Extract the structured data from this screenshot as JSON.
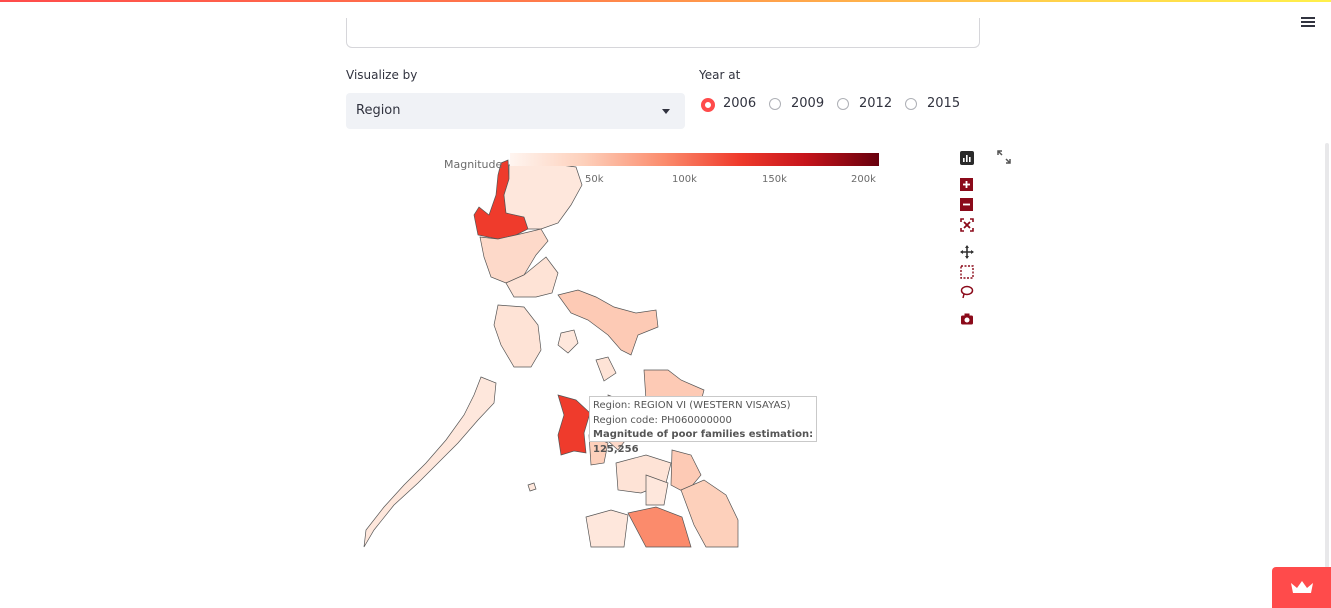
{
  "header": {
    "menu_icon": "hamburger-icon"
  },
  "controls": {
    "visualize_by": {
      "label": "Visualize by",
      "value": "Region",
      "caret_icon": "caret-down-icon"
    },
    "year_at": {
      "label": "Year at",
      "options": [
        "2006",
        "2009",
        "2012",
        "2015"
      ],
      "selected": "2006"
    }
  },
  "map": {
    "colorbar": {
      "title": "Magnitude",
      "ticks": [
        "50k",
        "100k",
        "150k",
        "200k"
      ],
      "colors": [
        "#fff5f0",
        "#fdd0bb",
        "#fb8b6c",
        "#ef3b2c",
        "#c6141b",
        "#67000d"
      ]
    },
    "tooltip": {
      "line1": "Region: REGION VI (WESTERN VISAYAS)",
      "line2": "Region code: PH060000000",
      "line3": "Magnitude of poor families estimation: 125,256"
    },
    "modebar": [
      "bar-chart-icon",
      "zoom-in-icon",
      "zoom-out-icon",
      "autoscale-icon",
      "pan-icon",
      "box-select-icon",
      "lasso-select-icon",
      "camera-icon"
    ]
  },
  "footer": {
    "badge_icon": "crown-icon",
    "accent": "#ff4b4b"
  }
}
